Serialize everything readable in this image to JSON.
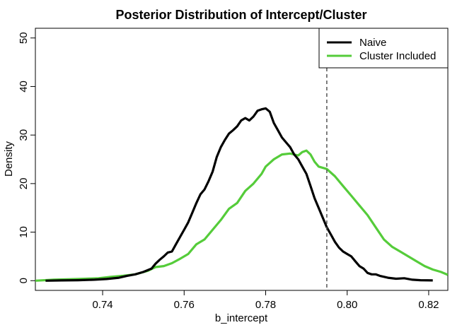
{
  "chart_data": {
    "type": "line",
    "title": "Posterior Distribution of Intercept/Cluster",
    "xlabel": "b_intercept",
    "ylabel": "Density",
    "xlim": [
      0.7235,
      0.8247
    ],
    "ylim": [
      -2.0,
      52.0
    ],
    "x_ticks": [
      0.74,
      0.76,
      0.78,
      0.8,
      0.82
    ],
    "x_tick_labels": [
      "0.74",
      "0.76",
      "0.78",
      "0.80",
      "0.82"
    ],
    "y_ticks": [
      0,
      10,
      20,
      30,
      40,
      50
    ],
    "y_tick_labels": [
      "0",
      "10",
      "20",
      "30",
      "40",
      "50"
    ],
    "grid": false,
    "legend_position": "top-right",
    "reference_line": {
      "x": 0.795,
      "style": "dashed",
      "color": "#555555"
    },
    "series": [
      {
        "name": "Naive",
        "color": "#000000",
        "points": [
          [
            0.726,
            0.0
          ],
          [
            0.73,
            0.05
          ],
          [
            0.734,
            0.1
          ],
          [
            0.738,
            0.2
          ],
          [
            0.741,
            0.35
          ],
          [
            0.744,
            0.6
          ],
          [
            0.746,
            1.0
          ],
          [
            0.748,
            1.3
          ],
          [
            0.75,
            1.8
          ],
          [
            0.752,
            2.5
          ],
          [
            0.753,
            3.5
          ],
          [
            0.754,
            4.3
          ],
          [
            0.755,
            5.0
          ],
          [
            0.756,
            5.8
          ],
          [
            0.757,
            6.0
          ],
          [
            0.758,
            7.5
          ],
          [
            0.759,
            9.0
          ],
          [
            0.76,
            10.5
          ],
          [
            0.761,
            12.0
          ],
          [
            0.762,
            14.0
          ],
          [
            0.763,
            16.0
          ],
          [
            0.764,
            17.8
          ],
          [
            0.765,
            18.8
          ],
          [
            0.766,
            20.5
          ],
          [
            0.767,
            22.5
          ],
          [
            0.768,
            25.5
          ],
          [
            0.769,
            27.5
          ],
          [
            0.77,
            29.0
          ],
          [
            0.771,
            30.3
          ],
          [
            0.772,
            31.0
          ],
          [
            0.773,
            31.8
          ],
          [
            0.774,
            33.0
          ],
          [
            0.775,
            33.5
          ],
          [
            0.776,
            33.0
          ],
          [
            0.777,
            33.8
          ],
          [
            0.778,
            35.0
          ],
          [
            0.779,
            35.3
          ],
          [
            0.78,
            35.5
          ],
          [
            0.781,
            34.8
          ],
          [
            0.782,
            32.5
          ],
          [
            0.783,
            31.0
          ],
          [
            0.784,
            29.5
          ],
          [
            0.785,
            28.5
          ],
          [
            0.786,
            27.5
          ],
          [
            0.787,
            26.0
          ],
          [
            0.788,
            25.0
          ],
          [
            0.789,
            23.5
          ],
          [
            0.79,
            22.0
          ],
          [
            0.791,
            19.5
          ],
          [
            0.792,
            17.0
          ],
          [
            0.793,
            15.0
          ],
          [
            0.794,
            13.0
          ],
          [
            0.795,
            11.0
          ],
          [
            0.796,
            9.5
          ],
          [
            0.797,
            8.0
          ],
          [
            0.798,
            6.8
          ],
          [
            0.799,
            6.0
          ],
          [
            0.8,
            5.5
          ],
          [
            0.801,
            5.0
          ],
          [
            0.802,
            4.0
          ],
          [
            0.803,
            3.0
          ],
          [
            0.804,
            2.5
          ],
          [
            0.805,
            1.6
          ],
          [
            0.806,
            1.3
          ],
          [
            0.807,
            1.3
          ],
          [
            0.808,
            1.0
          ],
          [
            0.81,
            0.6
          ],
          [
            0.812,
            0.4
          ],
          [
            0.814,
            0.5
          ],
          [
            0.816,
            0.2
          ],
          [
            0.818,
            0.1
          ],
          [
            0.821,
            0.05
          ]
        ]
      },
      {
        "name": "Cluster Included",
        "color": "#55cc3a",
        "points": [
          [
            0.7235,
            0.0
          ],
          [
            0.728,
            0.2
          ],
          [
            0.732,
            0.3
          ],
          [
            0.736,
            0.4
          ],
          [
            0.739,
            0.5
          ],
          [
            0.742,
            0.8
          ],
          [
            0.745,
            1.0
          ],
          [
            0.748,
            1.3
          ],
          [
            0.751,
            2.0
          ],
          [
            0.753,
            2.8
          ],
          [
            0.755,
            3.0
          ],
          [
            0.757,
            3.6
          ],
          [
            0.759,
            4.5
          ],
          [
            0.761,
            5.5
          ],
          [
            0.763,
            7.5
          ],
          [
            0.765,
            8.5
          ],
          [
            0.767,
            10.5
          ],
          [
            0.769,
            12.5
          ],
          [
            0.771,
            14.8
          ],
          [
            0.773,
            16.0
          ],
          [
            0.775,
            18.5
          ],
          [
            0.777,
            20.0
          ],
          [
            0.779,
            22.0
          ],
          [
            0.78,
            23.5
          ],
          [
            0.782,
            25.0
          ],
          [
            0.784,
            26.0
          ],
          [
            0.786,
            26.2
          ],
          [
            0.788,
            25.8
          ],
          [
            0.789,
            26.5
          ],
          [
            0.79,
            26.8
          ],
          [
            0.791,
            26.0
          ],
          [
            0.792,
            24.5
          ],
          [
            0.793,
            23.5
          ],
          [
            0.795,
            23.0
          ],
          [
            0.797,
            21.5
          ],
          [
            0.799,
            19.5
          ],
          [
            0.801,
            17.5
          ],
          [
            0.803,
            15.5
          ],
          [
            0.805,
            13.5
          ],
          [
            0.807,
            11.0
          ],
          [
            0.809,
            8.5
          ],
          [
            0.811,
            7.0
          ],
          [
            0.813,
            6.0
          ],
          [
            0.815,
            5.0
          ],
          [
            0.817,
            4.0
          ],
          [
            0.819,
            3.0
          ],
          [
            0.821,
            2.3
          ],
          [
            0.823,
            1.8
          ],
          [
            0.8247,
            1.2
          ]
        ]
      }
    ]
  }
}
